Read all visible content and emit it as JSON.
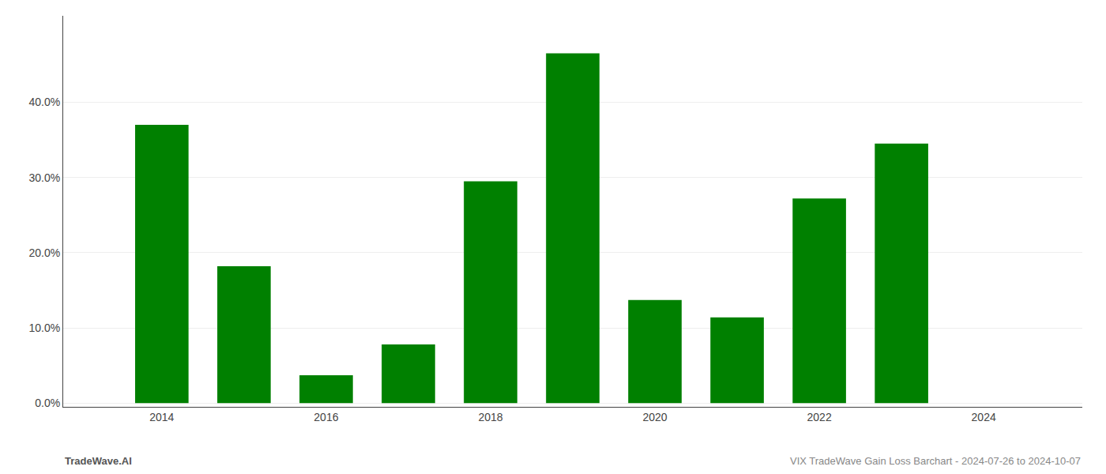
{
  "chart_data": {
    "type": "bar",
    "x": [
      2014,
      2015,
      2016,
      2017,
      2018,
      2019,
      2020,
      2021,
      2022,
      2023
    ],
    "values": [
      0.37,
      0.182,
      0.037,
      0.078,
      0.295,
      0.465,
      0.137,
      0.114,
      0.272,
      0.345
    ],
    "color": "#008000",
    "xlim": [
      2012.8,
      2025.2
    ],
    "xticks": [
      2014,
      2016,
      2018,
      2020,
      2022,
      2024
    ],
    "ylim": [
      -0.005,
      0.515
    ],
    "yticks": [
      {
        "value": 0.0,
        "label": "0.0%"
      },
      {
        "value": 0.1,
        "label": "10.0%"
      },
      {
        "value": 0.2,
        "label": "20.0%"
      },
      {
        "value": 0.3,
        "label": "30.0%"
      },
      {
        "value": 0.4,
        "label": "40.0%"
      }
    ],
    "grid": true,
    "annotations": [
      "TradeWave.AI",
      "VIX TradeWave Gain Loss Barchart - 2024-07-26 to 2024-10-07"
    ]
  }
}
